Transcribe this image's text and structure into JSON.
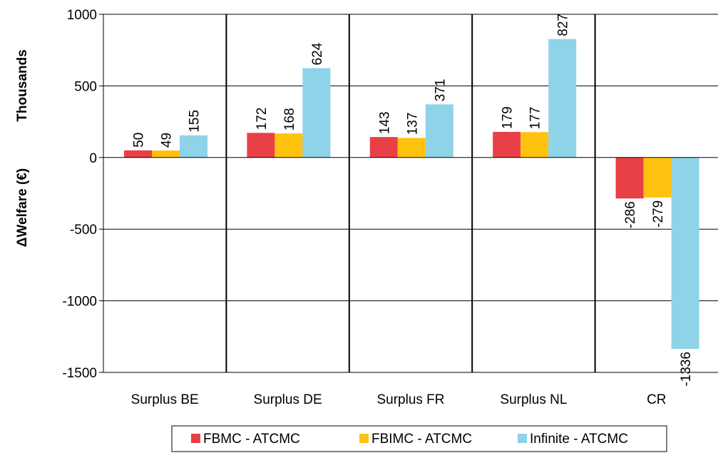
{
  "chart_data": {
    "type": "bar",
    "categories": [
      "Surplus BE",
      "Surplus DE",
      "Surplus FR",
      "Surplus NL",
      "CR"
    ],
    "series": [
      {
        "name": "FBMC - ATCMC",
        "color": "#e84046",
        "values": [
          50,
          172,
          143,
          179,
          -286
        ]
      },
      {
        "name": "FBIMC - ATCMC",
        "color": "#ffc20e",
        "values": [
          49,
          168,
          137,
          177,
          -279
        ]
      },
      {
        "name": "Infinite - ATCMC",
        "color": "#8fd3e8",
        "values": [
          155,
          624,
          371,
          827,
          -1336
        ]
      }
    ],
    "ylim": [
      -1500,
      1000
    ],
    "yticks": [
      1000,
      500,
      0,
      -500,
      -1000,
      -1500
    ],
    "ylabel_units": "Thousands",
    "ylabel": "ΔWelfare (€)",
    "xlabel": "",
    "title": "",
    "grid": true,
    "legend_position": "bottom"
  }
}
